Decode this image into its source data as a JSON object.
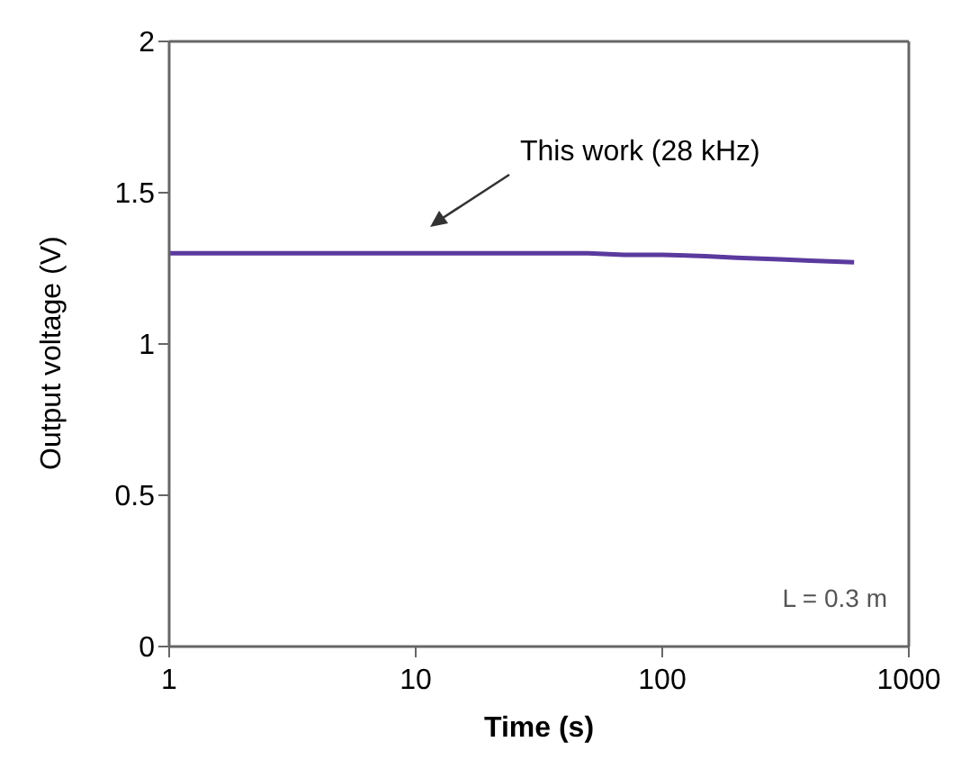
{
  "chart_data": {
    "type": "line",
    "xlabel": "Time (s)",
    "ylabel": "Output voltage (V)",
    "x": [
      1,
      10,
      20,
      50,
      70,
      100,
      150,
      200,
      300,
      400,
      600
    ],
    "series": [
      {
        "color": "#5b3a9e",
        "values": [
          1.3,
          1.3,
          1.3,
          1.3,
          1.295,
          1.295,
          1.29,
          1.285,
          1.28,
          1.275,
          1.27
        ]
      }
    ],
    "xlim": [
      1,
      1000
    ],
    "xticks": [
      1,
      10,
      100,
      1000
    ],
    "ylim": [
      0,
      2
    ],
    "yticks": [
      0,
      0.5,
      1,
      1.5,
      2
    ],
    "log": "x",
    "grid": false,
    "legend": false,
    "marker": "none",
    "line_style": "solid",
    "annotations": [
      "This work (28 kHz)",
      "L = 0.3 m"
    ]
  }
}
